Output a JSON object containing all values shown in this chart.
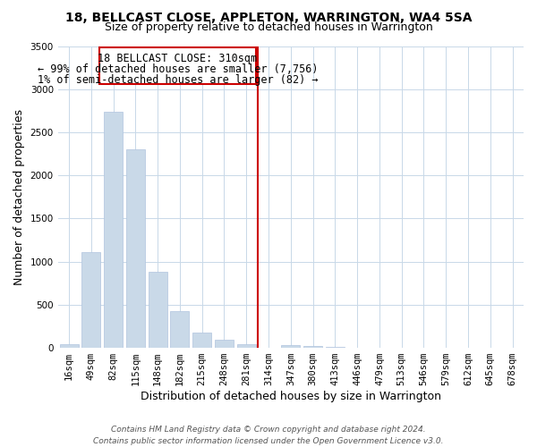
{
  "title": "18, BELLCAST CLOSE, APPLETON, WARRINGTON, WA4 5SA",
  "subtitle": "Size of property relative to detached houses in Warrington",
  "xlabel": "Distribution of detached houses by size in Warrington",
  "ylabel": "Number of detached properties",
  "bar_labels": [
    "16sqm",
    "49sqm",
    "82sqm",
    "115sqm",
    "148sqm",
    "182sqm",
    "215sqm",
    "248sqm",
    "281sqm",
    "314sqm",
    "347sqm",
    "380sqm",
    "413sqm",
    "446sqm",
    "479sqm",
    "513sqm",
    "546sqm",
    "579sqm",
    "612sqm",
    "645sqm",
    "678sqm"
  ],
  "bar_values": [
    45,
    1110,
    2740,
    2300,
    880,
    430,
    180,
    90,
    40,
    5,
    30,
    20,
    10,
    5,
    3,
    2,
    1,
    1,
    0,
    0,
    0
  ],
  "bar_color": "#c9d9e8",
  "bar_edge_color": "#b0c4de",
  "vline_color": "#cc0000",
  "vline_x_index": 8.5,
  "annotation_title": "18 BELLCAST CLOSE: 310sqm",
  "annotation_line1": "← 99% of detached houses are smaller (7,756)",
  "annotation_line2": "1% of semi-detached houses are larger (82) →",
  "annotation_box_color": "#cc0000",
  "annotation_bg": "#ffffff",
  "ylim": [
    0,
    3500
  ],
  "yticks": [
    0,
    500,
    1000,
    1500,
    2000,
    2500,
    3000,
    3500
  ],
  "footer1": "Contains HM Land Registry data © Crown copyright and database right 2024.",
  "footer2": "Contains public sector information licensed under the Open Government Licence v3.0.",
  "background_color": "#ffffff",
  "grid_color": "#c8d8e8",
  "title_fontsize": 10,
  "subtitle_fontsize": 9,
  "axis_label_fontsize": 9,
  "tick_fontsize": 7.5,
  "annotation_fontsize": 8.5,
  "footer_fontsize": 6.5
}
